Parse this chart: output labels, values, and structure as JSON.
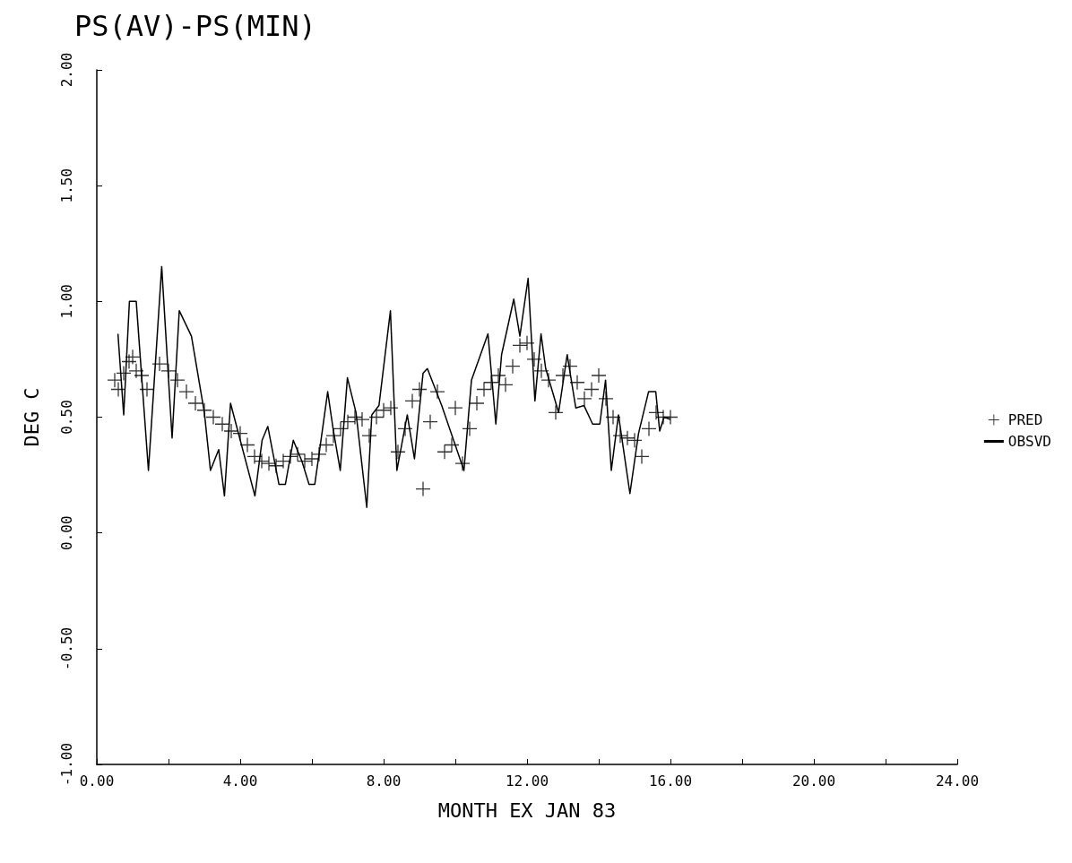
{
  "chart_data": {
    "type": "line",
    "title": "PS(AV)-PS(MIN)",
    "xlabel": "MONTH EX JAN 83",
    "ylabel": "DEG C",
    "xlim": [
      0,
      24
    ],
    "xticks": [
      {
        "value": 0,
        "label": "0.00"
      },
      {
        "value": 2,
        "label": null
      },
      {
        "value": 4,
        "label": "4.00"
      },
      {
        "value": 6,
        "label": null
      },
      {
        "value": 8,
        "label": "8.00"
      },
      {
        "value": 10,
        "label": null
      },
      {
        "value": 12,
        "label": "12.00"
      },
      {
        "value": 14,
        "label": null
      },
      {
        "value": 16,
        "label": "16.00"
      },
      {
        "value": 18,
        "label": null
      },
      {
        "value": 20,
        "label": "20.00"
      },
      {
        "value": 22,
        "label": null
      },
      {
        "value": 24,
        "label": "24.00"
      }
    ],
    "ylim": [
      -1,
      2
    ],
    "yticks": [
      {
        "value": -1,
        "label": "-1.00"
      },
      {
        "value": -0.5,
        "label": "-0.50"
      },
      {
        "value": 0,
        "label": "0.00"
      },
      {
        "value": 0.5,
        "label": "0.50"
      },
      {
        "value": 1,
        "label": "1.00"
      },
      {
        "value": 1.5,
        "label": "1.50"
      },
      {
        "value": 2,
        "label": "2.00"
      }
    ],
    "grid": false,
    "legend": "right",
    "series": [
      {
        "name": "PRED",
        "type": "scatter",
        "marker": "cross",
        "color": "#000000",
        "x": [
          0.5,
          0.6,
          0.75,
          0.9,
          1.0,
          1.1,
          1.25,
          1.4,
          1.75,
          2.0,
          2.25,
          2.5,
          2.75,
          3.0,
          3.25,
          3.5,
          3.75,
          4.0,
          4.2,
          4.4,
          4.6,
          4.8,
          5.0,
          5.2,
          5.4,
          5.6,
          5.8,
          6.0,
          6.2,
          6.4,
          6.6,
          6.8,
          7.0,
          7.2,
          7.4,
          7.6,
          7.8,
          8.0,
          8.2,
          8.4,
          8.6,
          8.8,
          9.0,
          9.1,
          9.3,
          9.5,
          9.7,
          9.9,
          10.0,
          10.2,
          10.4,
          10.6,
          10.8,
          11.0,
          11.2,
          11.4,
          11.6,
          11.8,
          12.0,
          12.2,
          12.4,
          12.6,
          12.8,
          13.0,
          13.2,
          13.4,
          13.6,
          13.8,
          14.0,
          14.2,
          14.4,
          14.6,
          14.8,
          15.0,
          15.2,
          15.4,
          15.6,
          15.8,
          16.0
        ],
        "values": [
          0.66,
          0.62,
          0.69,
          0.74,
          0.76,
          0.7,
          0.68,
          0.62,
          0.73,
          0.7,
          0.66,
          0.61,
          0.56,
          0.53,
          0.5,
          0.47,
          0.44,
          0.43,
          0.38,
          0.33,
          0.31,
          0.3,
          0.29,
          0.31,
          0.33,
          0.34,
          0.31,
          0.32,
          0.34,
          0.38,
          0.42,
          0.45,
          0.48,
          0.5,
          0.49,
          0.42,
          0.5,
          0.53,
          0.54,
          0.35,
          0.45,
          0.57,
          0.62,
          0.19,
          0.48,
          0.61,
          0.35,
          0.38,
          0.54,
          0.3,
          0.45,
          0.56,
          0.62,
          0.65,
          0.68,
          0.64,
          0.72,
          0.81,
          0.82,
          0.75,
          0.7,
          0.66,
          0.52,
          0.68,
          0.72,
          0.65,
          0.58,
          0.62,
          0.68,
          0.58,
          0.5,
          0.42,
          0.41,
          0.4,
          0.33,
          0.45,
          0.52,
          0.5,
          0.5
        ]
      },
      {
        "name": "OBSVD",
        "marker": "none",
        "color": "#000000",
        "x": [
          0.59,
          0.75,
          0.91,
          1.1,
          1.44,
          1.81,
          2.1,
          2.3,
          2.64,
          3.0,
          3.17,
          3.4,
          3.56,
          3.73,
          4.41,
          4.61,
          4.77,
          5.08,
          5.26,
          5.48,
          5.72,
          5.92,
          6.08,
          6.19,
          6.44,
          6.59,
          6.79,
          6.99,
          7.23,
          7.53,
          7.67,
          7.87,
          8.19,
          8.37,
          8.66,
          8.86,
          9.1,
          9.22,
          9.62,
          10.24,
          10.45,
          10.91,
          11.13,
          11.29,
          11.63,
          11.8,
          12.03,
          12.22,
          12.39,
          12.52,
          12.88,
          13.12,
          13.36,
          13.59,
          13.83,
          14.03,
          14.19,
          14.35,
          14.55,
          14.87,
          15.11,
          15.39,
          15.59,
          15.7,
          15.82,
          16.0
        ],
        "values": [
          0.86,
          0.51,
          1.0,
          1.0,
          0.27,
          1.15,
          0.41,
          0.96,
          0.85,
          0.52,
          0.27,
          0.36,
          0.16,
          0.56,
          0.16,
          0.4,
          0.46,
          0.21,
          0.21,
          0.4,
          0.31,
          0.21,
          0.21,
          0.33,
          0.61,
          0.45,
          0.27,
          0.67,
          0.52,
          0.11,
          0.51,
          0.55,
          0.96,
          0.27,
          0.51,
          0.32,
          0.69,
          0.71,
          0.55,
          0.27,
          0.66,
          0.86,
          0.47,
          0.77,
          1.01,
          0.85,
          1.1,
          0.57,
          0.86,
          0.71,
          0.52,
          0.77,
          0.54,
          0.55,
          0.47,
          0.47,
          0.66,
          0.27,
          0.51,
          0.17,
          0.43,
          0.61,
          0.61,
          0.44,
          0.5,
          0.49
        ]
      }
    ]
  }
}
